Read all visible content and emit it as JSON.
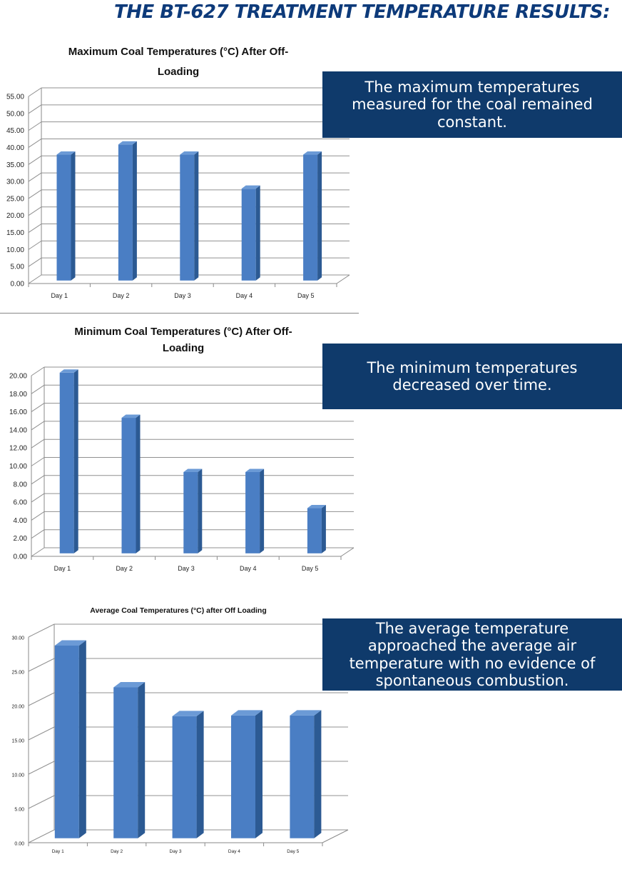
{
  "page": {
    "title": "THE BT-627 TREATMENT TEMPERATURE RESULTS:"
  },
  "callouts": [
    "The maximum temperatures measured for the coal remained constant.",
    "The minimum temperatures decreased over time.",
    "The average temperature approached the average air temperature with no evidence of spontaneous combustion."
  ],
  "colors": {
    "bar_front": "#4a7ec4",
    "bar_side": "#2c5a93",
    "bar_top": "#6b9ad6",
    "callout_bg": "#0f3a6b",
    "title": "#0d3a7a",
    "grid": "#909090"
  },
  "chart_data": [
    {
      "type": "bar",
      "title": "Maximum Coal Temperatures (°C) After Off-Loading",
      "categories": [
        "Day 1",
        "Day 2",
        "Day 3",
        "Day 4",
        "Day 5"
      ],
      "values": [
        37.0,
        40.0,
        37.0,
        27.0,
        37.0
      ],
      "ylim": [
        0,
        55
      ],
      "yticks": [
        "0.00",
        "5.00",
        "10.00",
        "15.00",
        "20.00",
        "25.00",
        "30.00",
        "35.00",
        "40.00",
        "45.00",
        "50.00",
        "55.00"
      ],
      "xlabel": "",
      "ylabel": "",
      "grid": true,
      "style": "3d"
    },
    {
      "type": "bar",
      "title": "Minimum Coal Temperatures (°C) After Off-Loading",
      "categories": [
        "Day 1",
        "Day 2",
        "Day 3",
        "Day 4",
        "Day 5"
      ],
      "values": [
        20.0,
        15.0,
        9.0,
        9.0,
        5.0
      ],
      "ylim": [
        0,
        20
      ],
      "yticks": [
        "0.00",
        "2.00",
        "4.00",
        "6.00",
        "8.00",
        "10.00",
        "12.00",
        "14.00",
        "16.00",
        "18.00",
        "20.00"
      ],
      "xlabel": "",
      "ylabel": "",
      "grid": true,
      "style": "3d"
    },
    {
      "type": "bar",
      "title": "Average Coal Temperatures (°C) after Off Loading",
      "categories": [
        "Day 1",
        "Day 2",
        "Day 3",
        "Day 4",
        "Day 5"
      ],
      "values": [
        28.1,
        22.0,
        17.8,
        17.9,
        17.9
      ],
      "ylim": [
        0,
        30
      ],
      "yticks": [
        "0.00",
        "5.00",
        "10.00",
        "15.00",
        "20.00",
        "25.00",
        "30.00"
      ],
      "xlabel": "",
      "ylabel": "",
      "grid": true,
      "style": "3d"
    }
  ]
}
